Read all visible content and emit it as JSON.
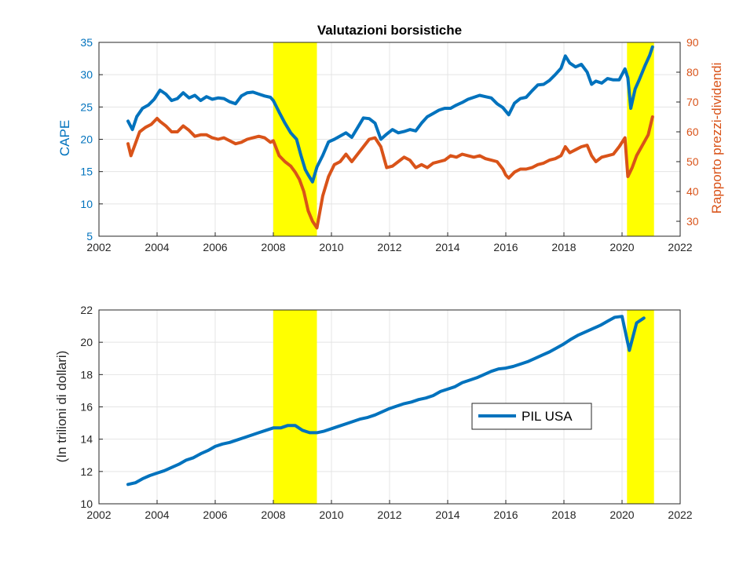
{
  "chart_data": [
    {
      "type": "line",
      "title": "Valutazioni borsistiche",
      "ylabel_left": "CAPE",
      "ylabel_right": "Rapporto prezzi-dividendi",
      "xlim": [
        2002,
        2022
      ],
      "ylim_left": [
        5,
        35
      ],
      "ylim_right": [
        25,
        90
      ],
      "xticks": [
        "2002",
        "2004",
        "2006",
        "2008",
        "2010",
        "2012",
        "2014",
        "2016",
        "2018",
        "2020",
        "2022"
      ],
      "yticks_left": [
        "5",
        "10",
        "15",
        "20",
        "25",
        "30",
        "35"
      ],
      "yticks_right": [
        "30",
        "40",
        "50",
        "60",
        "70",
        "80",
        "90"
      ],
      "grid": true,
      "shaded_periods": [
        [
          2008.0,
          2009.5
        ],
        [
          2020.17,
          2021.1
        ]
      ],
      "shade_color": "#FFFF00",
      "series": [
        {
          "axis": "left",
          "color": "#0072BD",
          "x": [
            2003.0,
            2003.15,
            2003.3,
            2003.5,
            2003.7,
            2003.9,
            2004.1,
            2004.3,
            2004.5,
            2004.7,
            2004.9,
            2005.1,
            2005.3,
            2005.5,
            2005.7,
            2005.9,
            2006.1,
            2006.3,
            2006.5,
            2006.7,
            2006.9,
            2007.1,
            2007.3,
            2007.5,
            2007.7,
            2007.9,
            2008.0,
            2008.2,
            2008.4,
            2008.6,
            2008.8,
            2008.95,
            2009.1,
            2009.2,
            2009.35,
            2009.5,
            2009.7,
            2009.9,
            2010.1,
            2010.3,
            2010.5,
            2010.7,
            2010.9,
            2011.1,
            2011.3,
            2011.5,
            2011.7,
            2011.9,
            2012.1,
            2012.3,
            2012.5,
            2012.7,
            2012.9,
            2013.1,
            2013.3,
            2013.5,
            2013.7,
            2013.9,
            2014.1,
            2014.3,
            2014.5,
            2014.7,
            2014.9,
            2015.1,
            2015.3,
            2015.5,
            2015.7,
            2015.9,
            2016.1,
            2016.3,
            2016.5,
            2016.7,
            2016.9,
            2017.1,
            2017.3,
            2017.5,
            2017.7,
            2017.9,
            2018.05,
            2018.2,
            2018.4,
            2018.6,
            2018.8,
            2018.95,
            2019.1,
            2019.3,
            2019.5,
            2019.7,
            2019.9,
            2020.1,
            2020.2,
            2020.3,
            2020.45,
            2020.6,
            2020.8,
            2020.95,
            2021.05
          ],
          "y": [
            22.8,
            21.5,
            23.5,
            24.8,
            25.3,
            26.2,
            27.6,
            27.0,
            26.0,
            26.3,
            27.2,
            26.4,
            26.8,
            26.0,
            26.6,
            26.2,
            26.4,
            26.3,
            25.8,
            25.5,
            26.7,
            27.2,
            27.3,
            27.0,
            26.7,
            26.5,
            26.0,
            24.2,
            22.5,
            21.0,
            20.0,
            17.5,
            15.3,
            14.5,
            13.4,
            15.7,
            17.5,
            19.6,
            20.0,
            20.5,
            21.0,
            20.3,
            21.8,
            23.3,
            23.2,
            22.5,
            20.0,
            20.8,
            21.5,
            21.0,
            21.2,
            21.5,
            21.3,
            22.5,
            23.5,
            24.0,
            24.5,
            24.8,
            24.8,
            25.3,
            25.7,
            26.2,
            26.5,
            26.8,
            26.6,
            26.4,
            25.5,
            24.9,
            23.8,
            25.6,
            26.3,
            26.5,
            27.5,
            28.4,
            28.5,
            29.1,
            30.0,
            31.0,
            32.9,
            31.8,
            31.2,
            31.6,
            30.4,
            28.5,
            29.0,
            28.7,
            29.4,
            29.2,
            29.2,
            30.9,
            29.5,
            24.8,
            27.8,
            29.3,
            31.5,
            33.0,
            34.3
          ]
        },
        {
          "axis": "right",
          "color": "#D95319",
          "x": [
            2003.0,
            2003.1,
            2003.25,
            2003.4,
            2003.6,
            2003.8,
            2004.0,
            2004.1,
            2004.3,
            2004.5,
            2004.7,
            2004.9,
            2005.1,
            2005.3,
            2005.5,
            2005.7,
            2005.9,
            2006.1,
            2006.3,
            2006.5,
            2006.7,
            2006.9,
            2007.1,
            2007.3,
            2007.5,
            2007.7,
            2007.9,
            2008.0,
            2008.2,
            2008.4,
            2008.6,
            2008.75,
            2008.9,
            2009.05,
            2009.2,
            2009.35,
            2009.5,
            2009.7,
            2009.9,
            2010.1,
            2010.3,
            2010.5,
            2010.7,
            2010.9,
            2011.1,
            2011.3,
            2011.5,
            2011.7,
            2011.9,
            2012.1,
            2012.3,
            2012.5,
            2012.7,
            2012.9,
            2013.1,
            2013.3,
            2013.5,
            2013.7,
            2013.9,
            2014.1,
            2014.3,
            2014.5,
            2014.7,
            2014.9,
            2015.1,
            2015.3,
            2015.5,
            2015.7,
            2015.9,
            2016.0,
            2016.1,
            2016.3,
            2016.5,
            2016.7,
            2016.9,
            2017.1,
            2017.3,
            2017.5,
            2017.7,
            2017.9,
            2018.05,
            2018.2,
            2018.4,
            2018.6,
            2018.8,
            2018.95,
            2019.1,
            2019.3,
            2019.5,
            2019.7,
            2019.9,
            2020.1,
            2020.2,
            2020.35,
            2020.5,
            2020.7,
            2020.9,
            2021.05
          ],
          "y": [
            56.0,
            52.0,
            56.0,
            60.0,
            61.5,
            62.5,
            64.5,
            63.5,
            62.0,
            60.0,
            60.0,
            62.0,
            60.5,
            58.5,
            59.0,
            59.0,
            58.0,
            57.5,
            58.0,
            57.0,
            56.0,
            56.5,
            57.5,
            58.0,
            58.5,
            58.0,
            56.5,
            57.0,
            52.0,
            50.0,
            48.5,
            46.5,
            44.0,
            40.0,
            33.5,
            30.0,
            27.8,
            38.5,
            45.0,
            49.0,
            50.0,
            52.5,
            50.0,
            52.5,
            55.0,
            57.5,
            58.0,
            55.0,
            48.0,
            48.5,
            50.0,
            51.5,
            50.5,
            48.0,
            49.0,
            48.0,
            49.5,
            50.0,
            50.5,
            52.0,
            51.5,
            52.5,
            52.0,
            51.5,
            52.0,
            51.0,
            50.5,
            50.0,
            47.5,
            45.5,
            44.5,
            46.5,
            47.5,
            47.5,
            48.0,
            49.0,
            49.5,
            50.5,
            51.0,
            52.0,
            55.0,
            53.0,
            54.0,
            55.0,
            55.5,
            52.0,
            50.0,
            51.5,
            52.0,
            52.5,
            55.0,
            58.0,
            45.0,
            48.0,
            52.0,
            55.5,
            59.0,
            65.0
          ]
        }
      ]
    },
    {
      "type": "line",
      "title": "",
      "ylabel": "(In trilioni di dollari)",
      "xlim": [
        2002,
        2022
      ],
      "ylim": [
        10,
        22
      ],
      "xticks": [
        "2002",
        "2004",
        "2006",
        "2008",
        "2010",
        "2012",
        "2014",
        "2016",
        "2018",
        "2020",
        "2022"
      ],
      "yticks": [
        "10",
        "12",
        "14",
        "16",
        "18",
        "20",
        "22"
      ],
      "grid": true,
      "legend_position": "center-right",
      "shaded_periods": [
        [
          2008.0,
          2009.5
        ],
        [
          2020.17,
          2021.1
        ]
      ],
      "shade_color": "#FFFF00",
      "series": [
        {
          "name": "PIL USA",
          "color": "#0072BD",
          "x": [
            2003.0,
            2003.25,
            2003.5,
            2003.75,
            2004.0,
            2004.25,
            2004.5,
            2004.75,
            2005.0,
            2005.25,
            2005.5,
            2005.75,
            2006.0,
            2006.25,
            2006.5,
            2006.75,
            2007.0,
            2007.25,
            2007.5,
            2007.75,
            2008.0,
            2008.25,
            2008.5,
            2008.75,
            2009.0,
            2009.25,
            2009.5,
            2009.75,
            2010.0,
            2010.25,
            2010.5,
            2010.75,
            2011.0,
            2011.25,
            2011.5,
            2011.75,
            2012.0,
            2012.25,
            2012.5,
            2012.75,
            2013.0,
            2013.25,
            2013.5,
            2013.75,
            2014.0,
            2014.25,
            2014.5,
            2014.75,
            2015.0,
            2015.25,
            2015.5,
            2015.75,
            2016.0,
            2016.25,
            2016.5,
            2016.75,
            2017.0,
            2017.25,
            2017.5,
            2017.75,
            2018.0,
            2018.25,
            2018.5,
            2018.75,
            2019.0,
            2019.25,
            2019.5,
            2019.75,
            2020.0,
            2020.25,
            2020.5,
            2020.75
          ],
          "y": [
            11.2,
            11.3,
            11.55,
            11.75,
            11.9,
            12.05,
            12.25,
            12.45,
            12.7,
            12.85,
            13.1,
            13.3,
            13.55,
            13.7,
            13.8,
            13.95,
            14.1,
            14.25,
            14.4,
            14.55,
            14.7,
            14.7,
            14.85,
            14.85,
            14.55,
            14.4,
            14.4,
            14.5,
            14.65,
            14.8,
            14.95,
            15.1,
            15.25,
            15.35,
            15.5,
            15.7,
            15.9,
            16.05,
            16.2,
            16.3,
            16.45,
            16.55,
            16.7,
            16.95,
            17.1,
            17.25,
            17.5,
            17.65,
            17.8,
            18.0,
            18.2,
            18.35,
            18.4,
            18.5,
            18.65,
            18.8,
            19.0,
            19.2,
            19.4,
            19.65,
            19.9,
            20.2,
            20.45,
            20.65,
            20.85,
            21.05,
            21.3,
            21.55,
            21.6,
            19.5,
            21.2,
            21.5
          ]
        }
      ]
    }
  ]
}
